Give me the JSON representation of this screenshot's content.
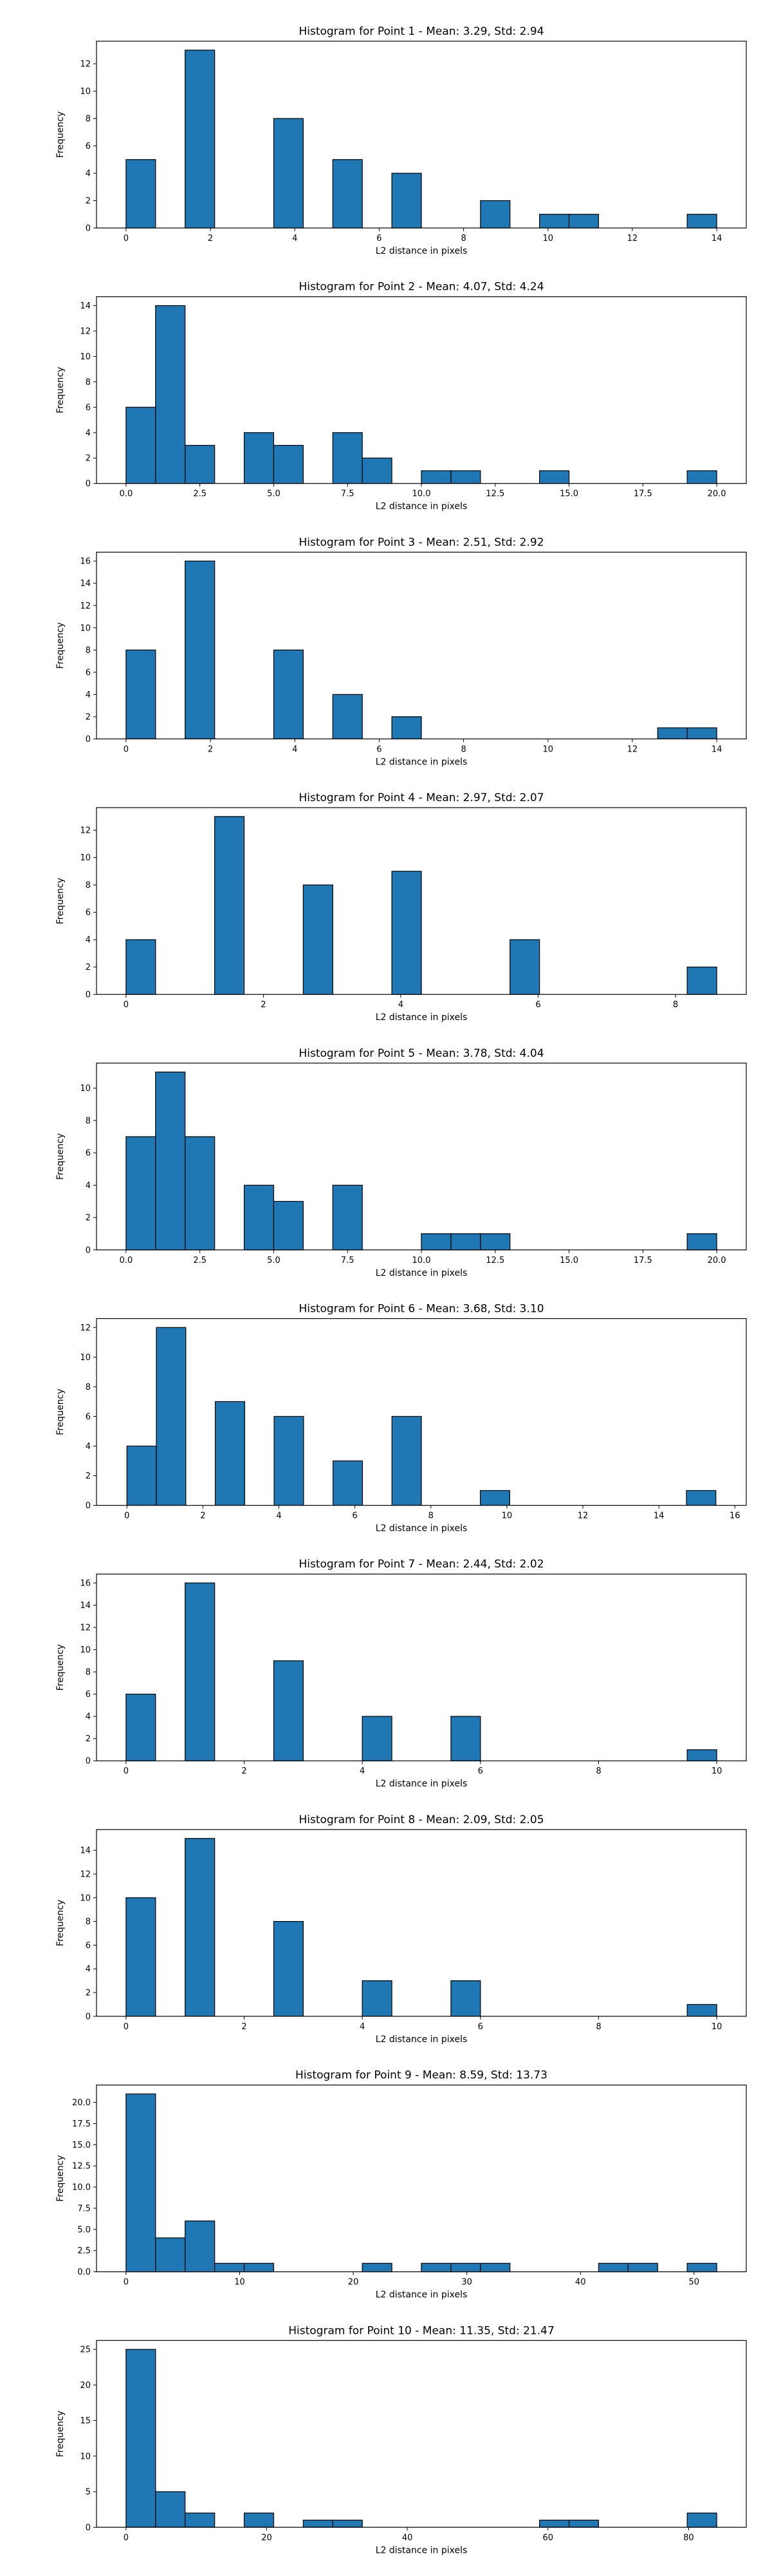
{
  "colors": {
    "bar_fill": "#1f77b4",
    "bar_edge": "#000000",
    "axes": "#000000",
    "background": "#ffffff"
  },
  "chart_data": [
    {
      "type": "bar",
      "title": "Histogram for Point 1 - Mean: 3.29, Std: 2.94",
      "xlabel": "L2 distance in pixels",
      "ylabel": "Frequency",
      "xlim": [
        -0.7,
        14.7
      ],
      "ylim": [
        0,
        13.65
      ],
      "xticks": [
        0,
        2,
        4,
        6,
        8,
        10,
        12,
        14
      ],
      "xtick_labels": [
        "0",
        "2",
        "4",
        "6",
        "8",
        "10",
        "12",
        "14"
      ],
      "yticks": [
        0,
        2,
        4,
        6,
        8,
        10,
        12
      ],
      "ytick_labels": [
        "0",
        "2",
        "4",
        "6",
        "8",
        "10",
        "12"
      ],
      "bin_edges": [
        0,
        0.7,
        1.4,
        2.1,
        2.8,
        3.5,
        4.2,
        4.9,
        5.6,
        6.3,
        7.0,
        7.7,
        8.4,
        9.1,
        9.8,
        10.5,
        11.2,
        11.9,
        12.6,
        13.3,
        14.0
      ],
      "counts": [
        5,
        0,
        13,
        0,
        0,
        8,
        0,
        5,
        0,
        4,
        0,
        0,
        2,
        0,
        1,
        1,
        0,
        0,
        0,
        1
      ],
      "grid": false
    },
    {
      "type": "bar",
      "title": "Histogram for Point 2 - Mean: 4.07, Std: 4.24",
      "xlabel": "L2 distance in pixels",
      "ylabel": "Frequency",
      "xlim": [
        -1.0,
        21.0
      ],
      "ylim": [
        0,
        14.7
      ],
      "xticks": [
        0,
        2.5,
        5,
        7.5,
        10,
        12.5,
        15,
        17.5,
        20
      ],
      "xtick_labels": [
        "0.0",
        "2.5",
        "5.0",
        "7.5",
        "10.0",
        "12.5",
        "15.0",
        "17.5",
        "20.0"
      ],
      "yticks": [
        0,
        2,
        4,
        6,
        8,
        10,
        12,
        14
      ],
      "ytick_labels": [
        "0",
        "2",
        "4",
        "6",
        "8",
        "10",
        "12",
        "14"
      ],
      "bin_edges": [
        0,
        1,
        2,
        3,
        4,
        5,
        6,
        7,
        8,
        9,
        10,
        11,
        12,
        13,
        14,
        15,
        16,
        17,
        18,
        19,
        20
      ],
      "counts": [
        6,
        14,
        3,
        0,
        4,
        3,
        0,
        4,
        2,
        0,
        1,
        1,
        0,
        0,
        1,
        0,
        0,
        0,
        0,
        1
      ],
      "grid": false
    },
    {
      "type": "bar",
      "title": "Histogram for Point 3 - Mean: 2.51, Std: 2.92",
      "xlabel": "L2 distance in pixels",
      "ylabel": "Frequency",
      "xlim": [
        -0.7,
        14.7
      ],
      "ylim": [
        0,
        16.8
      ],
      "xticks": [
        0,
        2,
        4,
        6,
        8,
        10,
        12,
        14
      ],
      "xtick_labels": [
        "0",
        "2",
        "4",
        "6",
        "8",
        "10",
        "12",
        "14"
      ],
      "yticks": [
        0,
        2,
        4,
        6,
        8,
        10,
        12,
        14,
        16
      ],
      "ytick_labels": [
        "0",
        "2",
        "4",
        "6",
        "8",
        "10",
        "12",
        "14",
        "16"
      ],
      "bin_edges": [
        0,
        0.7,
        1.4,
        2.1,
        2.8,
        3.5,
        4.2,
        4.9,
        5.6,
        6.3,
        7.0,
        7.7,
        8.4,
        9.1,
        9.8,
        10.5,
        11.2,
        11.9,
        12.6,
        13.3,
        14.0
      ],
      "counts": [
        8,
        0,
        16,
        0,
        0,
        8,
        0,
        4,
        0,
        2,
        0,
        0,
        0,
        0,
        0,
        0,
        0,
        0,
        1,
        1
      ],
      "grid": false
    },
    {
      "type": "bar",
      "title": "Histogram for Point 4 - Mean: 2.97, Std: 2.07",
      "xlabel": "L2 distance in pixels",
      "ylabel": "Frequency",
      "xlim": [
        -0.43,
        9.03
      ],
      "ylim": [
        0,
        13.65
      ],
      "xticks": [
        0,
        2,
        4,
        6,
        8
      ],
      "xtick_labels": [
        "0",
        "2",
        "4",
        "6",
        "8"
      ],
      "yticks": [
        0,
        2,
        4,
        6,
        8,
        10,
        12
      ],
      "ytick_labels": [
        "0",
        "2",
        "4",
        "6",
        "8",
        "10",
        "12"
      ],
      "bin_edges": [
        0,
        0.43,
        0.86,
        1.29,
        1.72,
        2.15,
        2.58,
        3.01,
        3.44,
        3.87,
        4.3,
        4.73,
        5.16,
        5.59,
        6.02,
        6.45,
        6.88,
        7.31,
        7.74,
        8.17,
        8.6
      ],
      "counts": [
        4,
        0,
        0,
        13,
        0,
        0,
        8,
        0,
        0,
        9,
        0,
        0,
        0,
        4,
        0,
        0,
        0,
        0,
        0,
        2
      ],
      "grid": false
    },
    {
      "type": "bar",
      "title": "Histogram for Point 5 - Mean: 3.78, Std: 4.04",
      "xlabel": "L2 distance in pixels",
      "ylabel": "Frequency",
      "xlim": [
        -1.0,
        21.0
      ],
      "ylim": [
        0,
        11.55
      ],
      "xticks": [
        0,
        2.5,
        5,
        7.5,
        10,
        12.5,
        15,
        17.5,
        20
      ],
      "xtick_labels": [
        "0.0",
        "2.5",
        "5.0",
        "7.5",
        "10.0",
        "12.5",
        "15.0",
        "17.5",
        "20.0"
      ],
      "yticks": [
        0,
        2,
        4,
        6,
        8,
        10
      ],
      "ytick_labels": [
        "0",
        "2",
        "4",
        "6",
        "8",
        "10"
      ],
      "bin_edges": [
        0,
        1,
        2,
        3,
        4,
        5,
        6,
        7,
        8,
        9,
        10,
        11,
        12,
        13,
        14,
        15,
        16,
        17,
        18,
        19,
        20
      ],
      "counts": [
        7,
        11,
        7,
        0,
        4,
        3,
        0,
        4,
        0,
        0,
        1,
        1,
        1,
        0,
        0,
        0,
        0,
        0,
        0,
        1
      ],
      "grid": false
    },
    {
      "type": "bar",
      "title": "Histogram for Point 6 - Mean: 3.68, Std: 3.10",
      "xlabel": "L2 distance in pixels",
      "ylabel": "Frequency",
      "xlim": [
        -0.8,
        16.3
      ],
      "ylim": [
        0,
        12.6
      ],
      "xticks": [
        0,
        2,
        4,
        6,
        8,
        10,
        12,
        14,
        16
      ],
      "xtick_labels": [
        "0",
        "2",
        "4",
        "6",
        "8",
        "10",
        "12",
        "14",
        "16"
      ],
      "yticks": [
        0,
        2,
        4,
        6,
        8,
        10,
        12
      ],
      "ytick_labels": [
        "0",
        "2",
        "4",
        "6",
        "8",
        "10",
        "12"
      ],
      "bin_edges": [
        0,
        0.775,
        1.55,
        2.325,
        3.1,
        3.875,
        4.65,
        5.425,
        6.2,
        6.975,
        7.75,
        8.525,
        9.3,
        10.075,
        10.85,
        11.625,
        12.4,
        13.175,
        13.95,
        14.725,
        15.5
      ],
      "counts": [
        4,
        12,
        0,
        7,
        0,
        6,
        0,
        3,
        0,
        6,
        0,
        0,
        1,
        0,
        0,
        0,
        0,
        0,
        0,
        1
      ],
      "grid": false
    },
    {
      "type": "bar",
      "title": "Histogram for Point 7 - Mean: 2.44, Std: 2.02",
      "xlabel": "L2 distance in pixels",
      "ylabel": "Frequency",
      "xlim": [
        -0.5,
        10.5
      ],
      "ylim": [
        0,
        16.8
      ],
      "xticks": [
        0,
        2,
        4,
        6,
        8,
        10
      ],
      "xtick_labels": [
        "0",
        "2",
        "4",
        "6",
        "8",
        "10"
      ],
      "yticks": [
        0,
        2,
        4,
        6,
        8,
        10,
        12,
        14,
        16
      ],
      "ytick_labels": [
        "0",
        "2",
        "4",
        "6",
        "8",
        "10",
        "12",
        "14",
        "16"
      ],
      "bin_edges": [
        0,
        0.5,
        1.0,
        1.5,
        2.0,
        2.5,
        3.0,
        3.5,
        4.0,
        4.5,
        5.0,
        5.5,
        6.0,
        6.5,
        7.0,
        7.5,
        8.0,
        8.5,
        9.0,
        9.5,
        10.0
      ],
      "counts": [
        6,
        0,
        16,
        0,
        0,
        9,
        0,
        0,
        4,
        0,
        0,
        4,
        0,
        0,
        0,
        0,
        0,
        0,
        0,
        1
      ],
      "grid": false
    },
    {
      "type": "bar",
      "title": "Histogram for Point 8 - Mean: 2.09, Std: 2.05",
      "xlabel": "L2 distance in pixels",
      "ylabel": "Frequency",
      "xlim": [
        -0.5,
        10.5
      ],
      "ylim": [
        0,
        15.75
      ],
      "xticks": [
        0,
        2,
        4,
        6,
        8,
        10
      ],
      "xtick_labels": [
        "0",
        "2",
        "4",
        "6",
        "8",
        "10"
      ],
      "yticks": [
        0,
        2,
        4,
        6,
        8,
        10,
        12,
        14
      ],
      "ytick_labels": [
        "0",
        "2",
        "4",
        "6",
        "8",
        "10",
        "12",
        "14"
      ],
      "bin_edges": [
        0,
        0.5,
        1.0,
        1.5,
        2.0,
        2.5,
        3.0,
        3.5,
        4.0,
        4.5,
        5.0,
        5.5,
        6.0,
        6.5,
        7.0,
        7.5,
        8.0,
        8.5,
        9.0,
        9.5,
        10.0
      ],
      "counts": [
        10,
        0,
        15,
        0,
        0,
        8,
        0,
        0,
        3,
        0,
        0,
        3,
        0,
        0,
        0,
        0,
        0,
        0,
        0,
        1
      ],
      "grid": false
    },
    {
      "type": "bar",
      "title": "Histogram for Point 9 - Mean: 8.59, Std: 13.73",
      "xlabel": "L2 distance in pixels",
      "ylabel": "Frequency",
      "xlim": [
        -2.6,
        54.6
      ],
      "ylim": [
        0,
        22.05
      ],
      "xticks": [
        0,
        10,
        20,
        30,
        40,
        50
      ],
      "xtick_labels": [
        "0",
        "10",
        "20",
        "30",
        "40",
        "50"
      ],
      "yticks": [
        0,
        2.5,
        5,
        7.5,
        10,
        12.5,
        15,
        17.5,
        20
      ],
      "ytick_labels": [
        "0.0",
        "2.5",
        "5.0",
        "7.5",
        "10.0",
        "12.5",
        "15.0",
        "17.5",
        "20.0"
      ],
      "bin_edges": [
        0,
        2.6,
        5.2,
        7.8,
        10.4,
        13.0,
        15.6,
        18.2,
        20.8,
        23.4,
        26.0,
        28.6,
        31.2,
        33.8,
        36.4,
        39.0,
        41.6,
        44.2,
        46.8,
        49.4,
        52.0
      ],
      "counts": [
        21,
        4,
        6,
        1,
        1,
        0,
        0,
        0,
        1,
        0,
        1,
        1,
        1,
        0,
        0,
        0,
        1,
        1,
        0,
        1
      ],
      "grid": false
    },
    {
      "type": "bar",
      "title": "Histogram for Point 10 - Mean: 11.35, Std: 21.47",
      "xlabel": "L2 distance in pixels",
      "ylabel": "Frequency",
      "xlim": [
        -4.2,
        88.2
      ],
      "ylim": [
        0,
        26.25
      ],
      "xticks": [
        0,
        20,
        40,
        60,
        80
      ],
      "xtick_labels": [
        "0",
        "20",
        "40",
        "60",
        "80"
      ],
      "yticks": [
        0,
        5,
        10,
        15,
        20,
        25
      ],
      "ytick_labels": [
        "0",
        "5",
        "10",
        "15",
        "20",
        "25"
      ],
      "bin_edges": [
        0,
        4.2,
        8.4,
        12.6,
        16.8,
        21.0,
        25.2,
        29.4,
        33.6,
        37.8,
        42.0,
        46.2,
        50.4,
        54.6,
        58.8,
        63.0,
        67.2,
        71.4,
        75.6,
        79.8,
        84.0
      ],
      "counts": [
        25,
        5,
        2,
        0,
        2,
        0,
        1,
        1,
        0,
        0,
        0,
        0,
        0,
        0,
        1,
        1,
        0,
        0,
        0,
        2
      ],
      "grid": false
    }
  ]
}
